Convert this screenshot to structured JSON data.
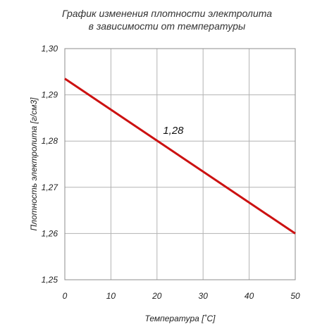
{
  "chart_data": {
    "type": "line",
    "title_lines": [
      "График изменения плотности электролита",
      "в зависимости от температуры"
    ],
    "xlabel": "Температура [˚С]",
    "ylabel": "Плотность электролита [г/см3]",
    "xlim": [
      0,
      50
    ],
    "ylim": [
      1.25,
      1.3
    ],
    "x_ticks": [
      {
        "value": 0,
        "label": "0"
      },
      {
        "value": 10,
        "label": "10"
      },
      {
        "value": 20,
        "label": "20"
      },
      {
        "value": 30,
        "label": "30"
      },
      {
        "value": 40,
        "label": "40"
      },
      {
        "value": 50,
        "label": "50"
      }
    ],
    "y_ticks": [
      {
        "value": 1.3,
        "label": "1,30"
      },
      {
        "value": 1.29,
        "label": "1,29"
      },
      {
        "value": 1.28,
        "label": "1,28"
      },
      {
        "value": 1.27,
        "label": "1,27"
      },
      {
        "value": 1.26,
        "label": "1,26"
      },
      {
        "value": 1.25,
        "label": "1,25"
      }
    ],
    "grid": true,
    "series": [
      {
        "color": "#cc1111",
        "x": [
          0,
          50
        ],
        "y": [
          1.2935,
          1.26
        ]
      }
    ],
    "annotations": [
      {
        "text": "1,28",
        "x": 21,
        "y": 1.28
      }
    ]
  }
}
